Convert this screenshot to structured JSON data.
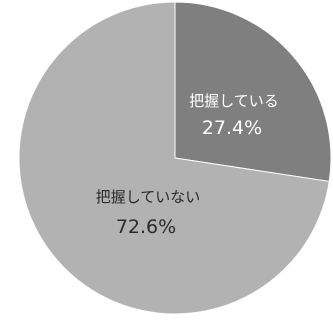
{
  "chart_data": {
    "type": "pie",
    "title": "",
    "slices": [
      {
        "label": "把握している",
        "value": 27.4,
        "value_label": "27.4%",
        "color": "#7f7f7f"
      },
      {
        "label": "把握していない",
        "value": 72.6,
        "value_label": "72.6%",
        "color": "#b2b2b2"
      }
    ],
    "start": "12 o'clock",
    "direction": "clockwise",
    "legend": "none"
  }
}
